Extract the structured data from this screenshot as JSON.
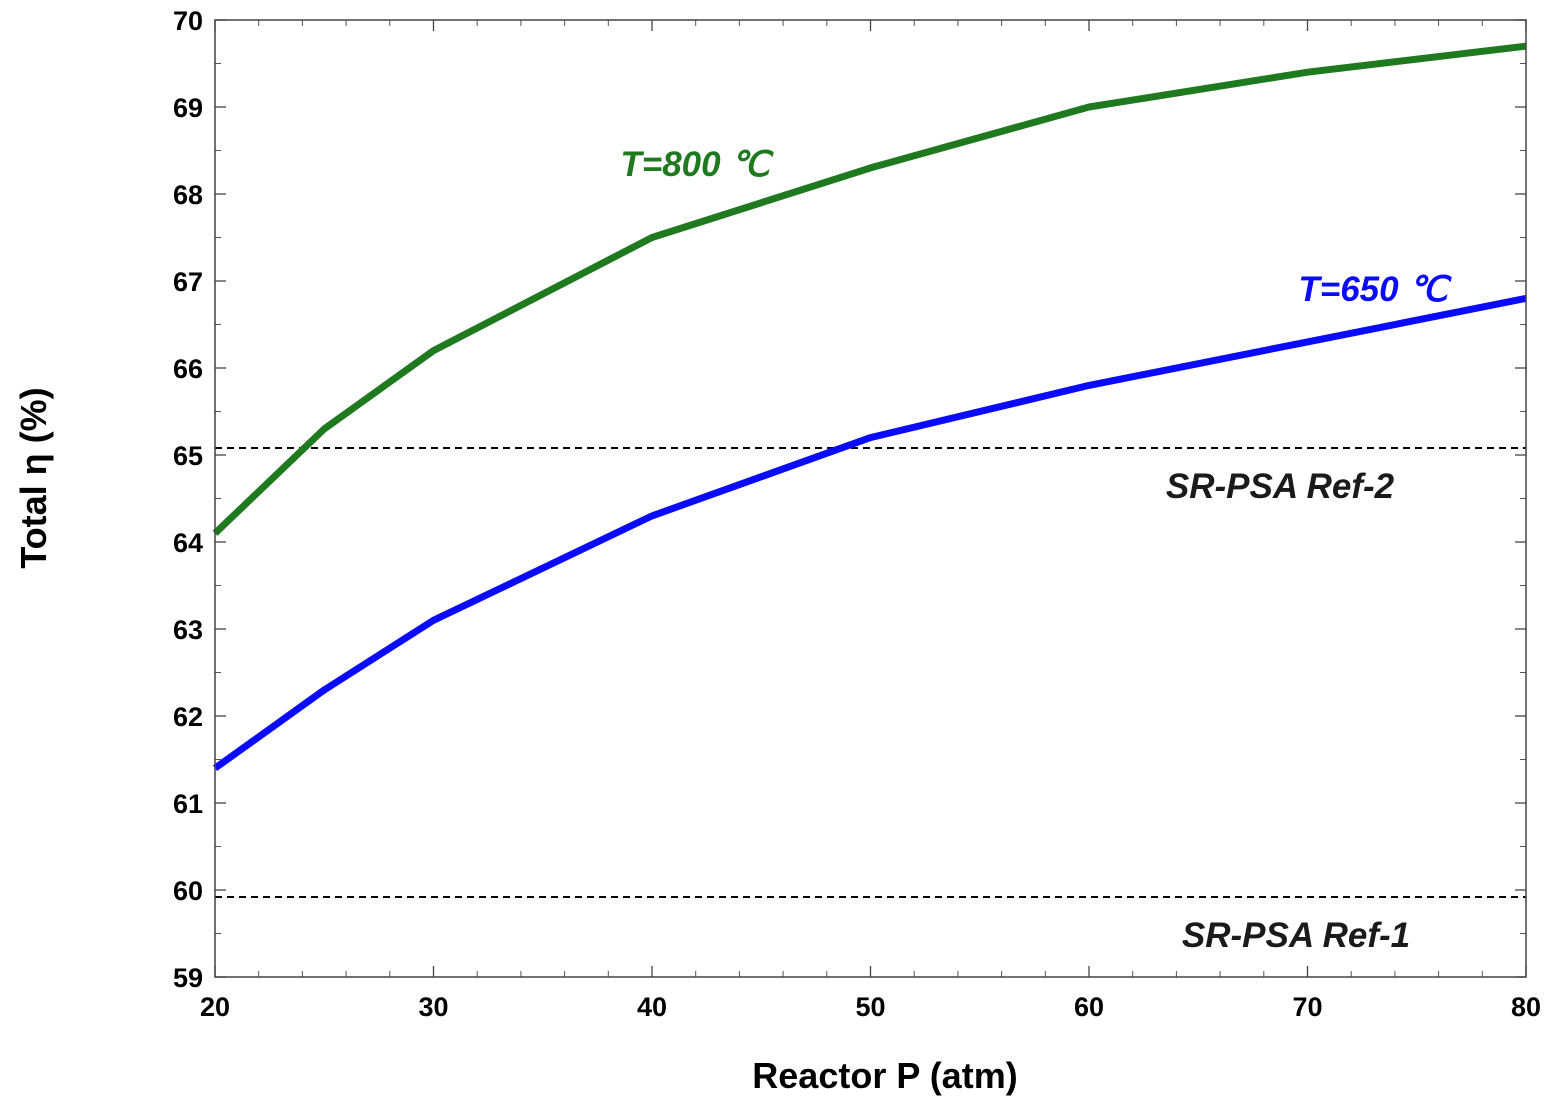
{
  "chart_data": {
    "type": "line",
    "xlabel": "Reactor P (atm)",
    "ylabel": "Total η (%)",
    "xlim": [
      20,
      80
    ],
    "ylim": [
      59,
      70
    ],
    "xticks": [
      "20",
      "30",
      "40",
      "50",
      "60",
      "70",
      "80"
    ],
    "yticks": [
      "59",
      "60",
      "61",
      "62",
      "63",
      "64",
      "65",
      "66",
      "67",
      "68",
      "69",
      "70"
    ],
    "grid": false,
    "series": [
      {
        "name": "T=800 ℃",
        "color": "#1f7a1f",
        "x": [
          20,
          25,
          30,
          40,
          50,
          60,
          70,
          80
        ],
        "y": [
          64.1,
          65.3,
          66.2,
          67.5,
          68.3,
          69.0,
          69.4,
          69.7
        ]
      },
      {
        "name": "T=650 ℃",
        "color": "#0a0aff",
        "x": [
          20,
          25,
          30,
          40,
          50,
          60,
          70,
          80
        ],
        "y": [
          61.4,
          62.3,
          63.1,
          64.3,
          65.2,
          65.8,
          66.3,
          66.8
        ]
      }
    ],
    "reference_lines": [
      {
        "label": "SR-PSA Ref-2",
        "y": 65.08,
        "style": "dashed",
        "color": "#000000"
      },
      {
        "label": "SR-PSA Ref-1",
        "y": 59.92,
        "style": "dashed",
        "color": "#000000"
      }
    ]
  }
}
